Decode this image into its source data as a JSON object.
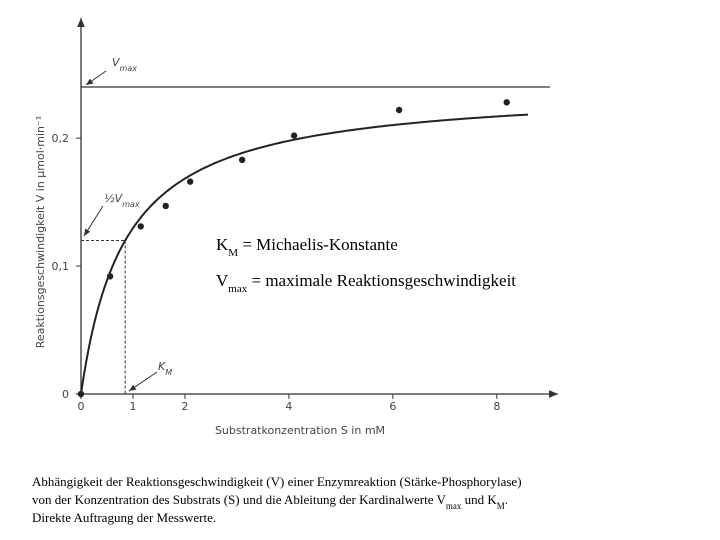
{
  "chart_data": {
    "type": "scatter",
    "x": [
      0,
      0.56,
      1.15,
      1.63,
      2.1,
      3.1,
      4.1,
      6.12,
      8.19
    ],
    "values": [
      0,
      0.092,
      0.131,
      0.147,
      0.166,
      0.183,
      0.202,
      0.222,
      0.228
    ],
    "color": "#222222",
    "xlim": [
      0,
      9.1
    ],
    "ylim": [
      0,
      0.29
    ],
    "xticks": [
      0,
      1,
      2,
      4,
      6,
      8
    ],
    "yticks": [
      0,
      {
        "value": 0.1,
        "label": "0,1"
      },
      {
        "value": 0.2,
        "label": "0,2"
      }
    ],
    "x_label": "Substratkonzentration S in mM",
    "y_label": "Reaktionsgeschwindigkeit V in µmol·min⁻¹",
    "vmax": 0.24,
    "km": 0.85,
    "vmax_label": [
      "V",
      "max"
    ],
    "half_vmax_label": [
      "½V",
      "max"
    ],
    "km_label": [
      "K",
      "M"
    ],
    "key": [
      [
        "K",
        "M",
        " = Michaelis-Konstante"
      ],
      [
        "V",
        "max",
        " = maximale Reaktionsgeschwindigkeit"
      ]
    ]
  },
  "caption": [
    [
      "Abhängigkeit der Reaktionsgeschwindigkeit (V) einer Enzymreaktion (Stärke-Phosphorylase)"
    ],
    [
      "von der Konzentration des Substrats (S) und die Ableitung der Kardinalwerte V",
      "max",
      " und K",
      "M",
      "."
    ],
    [
      "Direkte Auftragung der Messwerte."
    ]
  ]
}
